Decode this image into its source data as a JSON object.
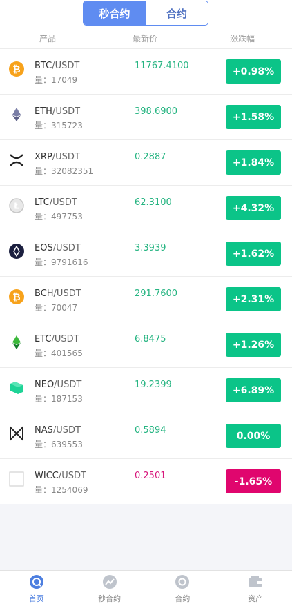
{
  "top_tabs": [
    {
      "label": "秒合约"
    },
    {
      "label": "合约"
    }
  ],
  "columns": {
    "product": "产品",
    "price": "最新价",
    "change": "涨跌幅"
  },
  "volume_prefix": "量：",
  "rows": [
    {
      "base": "BTC",
      "quote": "/USDT",
      "volume": "17049",
      "price": "11767.4100",
      "change": "+0.98%",
      "icon": "bitcoin-icon"
    },
    {
      "base": "ETH",
      "quote": "/USDT",
      "volume": "315723",
      "price": "398.6900",
      "change": "+1.58%",
      "icon": "ethereum-icon"
    },
    {
      "base": "XRP",
      "quote": "/USDT",
      "volume": "32082351",
      "price": "0.2887",
      "change": "+1.84%",
      "icon": "ripple-icon"
    },
    {
      "base": "LTC",
      "quote": "/USDT",
      "volume": "497753",
      "price": "62.3100",
      "change": "+4.32%",
      "icon": "litecoin-icon"
    },
    {
      "base": "EOS",
      "quote": "/USDT",
      "volume": "9791616",
      "price": "3.3939",
      "change": "+1.62%",
      "icon": "eos-icon"
    },
    {
      "base": "BCH",
      "quote": "/USDT",
      "volume": "70047",
      "price": "291.7600",
      "change": "+2.31%",
      "icon": "bitcoin-cash-icon"
    },
    {
      "base": "ETC",
      "quote": "/USDT",
      "volume": "401565",
      "price": "6.8475",
      "change": "+1.26%",
      "icon": "ethereum-classic-icon"
    },
    {
      "base": "NEO",
      "quote": "/USDT",
      "volume": "187153",
      "price": "19.2399",
      "change": "+6.89%",
      "icon": "neo-icon"
    },
    {
      "base": "NAS",
      "quote": "/USDT",
      "volume": "639553",
      "price": "0.5894",
      "change": "0.00%",
      "icon": "nebulas-icon"
    },
    {
      "base": "WICC",
      "quote": "/USDT",
      "volume": "1254069",
      "price": "0.2501",
      "change": "-1.65%",
      "icon": "wicc-icon"
    }
  ],
  "colors": {
    "up": "#0bc488",
    "down": "#e0066e",
    "accent": "#5f8cf1"
  },
  "bottom_nav": [
    {
      "label": "首页",
      "icon": "home-icon"
    },
    {
      "label": "秒合约",
      "icon": "trend-icon"
    },
    {
      "label": "合约",
      "icon": "contract-icon"
    },
    {
      "label": "资产",
      "icon": "wallet-icon"
    }
  ]
}
